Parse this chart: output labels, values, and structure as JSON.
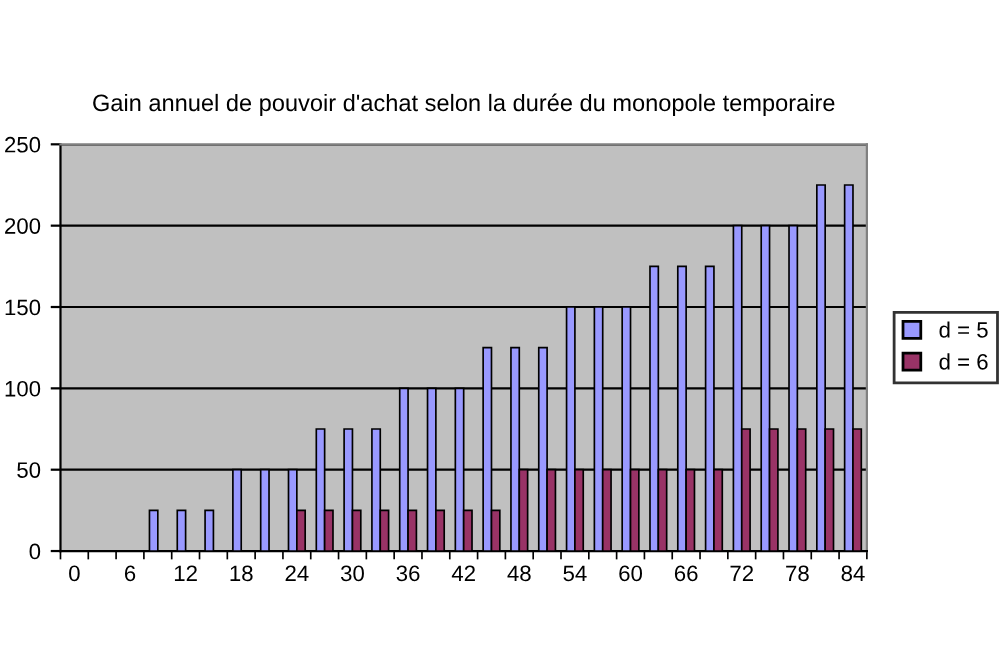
{
  "chart_data": {
    "type": "bar",
    "title": "Gain annuel de pouvoir d'achat selon la durée du monopole temporaire",
    "categories": [
      "0",
      null,
      "6",
      null,
      "12",
      null,
      "18",
      null,
      "24",
      null,
      "30",
      null,
      "36",
      null,
      "42",
      null,
      "48",
      null,
      "54",
      null,
      "60",
      null,
      "66",
      null,
      "72",
      null,
      "78",
      null,
      "84"
    ],
    "series": [
      {
        "name": "d = 5",
        "color": "#9999ff",
        "values": [
          null,
          null,
          null,
          25,
          25,
          25,
          50,
          50,
          50,
          75,
          75,
          75,
          100,
          100,
          100,
          125,
          125,
          125,
          150,
          150,
          150,
          175,
          175,
          175,
          200,
          200,
          200,
          225,
          225
        ]
      },
      {
        "name": "d = 6",
        "color": "#993366",
        "values": [
          null,
          null,
          null,
          null,
          null,
          null,
          null,
          null,
          25,
          25,
          25,
          25,
          25,
          25,
          25,
          25,
          50,
          50,
          50,
          50,
          50,
          50,
          50,
          50,
          75,
          75,
          75,
          75,
          75
        ]
      }
    ],
    "ylim": [
      0,
      250
    ],
    "yticks": [
      0,
      50,
      100,
      150,
      200,
      250
    ],
    "grid": "y",
    "legend": "right"
  }
}
